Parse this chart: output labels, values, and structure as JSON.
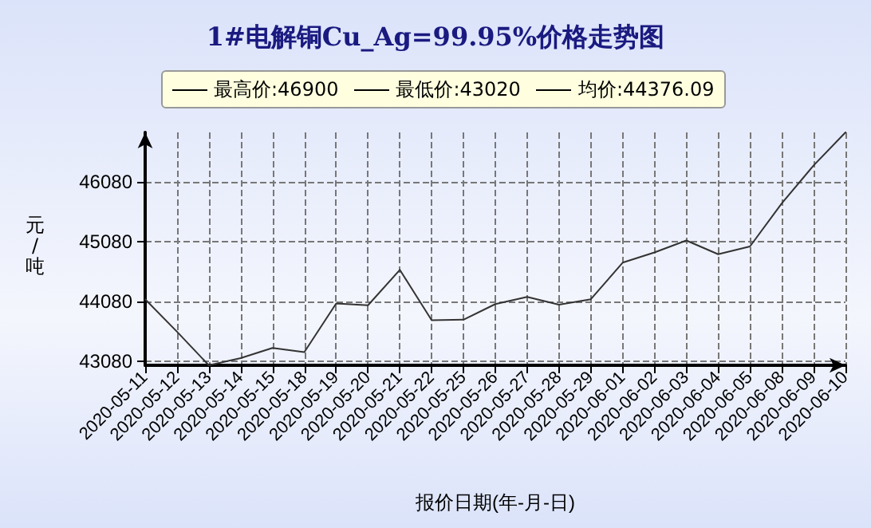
{
  "chart_data": {
    "type": "line",
    "title": "1#电解铜Cu_Ag=99.95%价格走势图",
    "xlabel": "报价日期(年-月-日)",
    "ylabel": "元/吨",
    "annotations": [
      "最高价:46900",
      "最低价:43020",
      "均价:44376.09"
    ],
    "categories": [
      "2020-05-11",
      "2020-05-12",
      "2020-05-13",
      "2020-05-14",
      "2020-05-15",
      "2020-05-18",
      "2020-05-19",
      "2020-05-20",
      "2020-05-21",
      "2020-05-22",
      "2020-05-25",
      "2020-05-26",
      "2020-05-27",
      "2020-05-28",
      "2020-05-29",
      "2020-06-01",
      "2020-06-02",
      "2020-06-03",
      "2020-06-04",
      "2020-06-05",
      "2020-06-08",
      "2020-06-09",
      "2020-06-10"
    ],
    "series": [
      {
        "color": "#333333",
        "values": [
          44120,
          43580,
          43020,
          43140,
          43310,
          43240,
          44050,
          44020,
          44610,
          43770,
          43780,
          44040,
          44160,
          44030,
          44120,
          44730,
          44900,
          45100,
          44870,
          45000,
          45720,
          46350,
          46900
        ]
      }
    ],
    "ylim": [
      43020,
      46900
    ],
    "yticks": [
      43080,
      44080,
      45080,
      46080
    ],
    "grid": true,
    "marker": "none",
    "line_style": "solid"
  }
}
